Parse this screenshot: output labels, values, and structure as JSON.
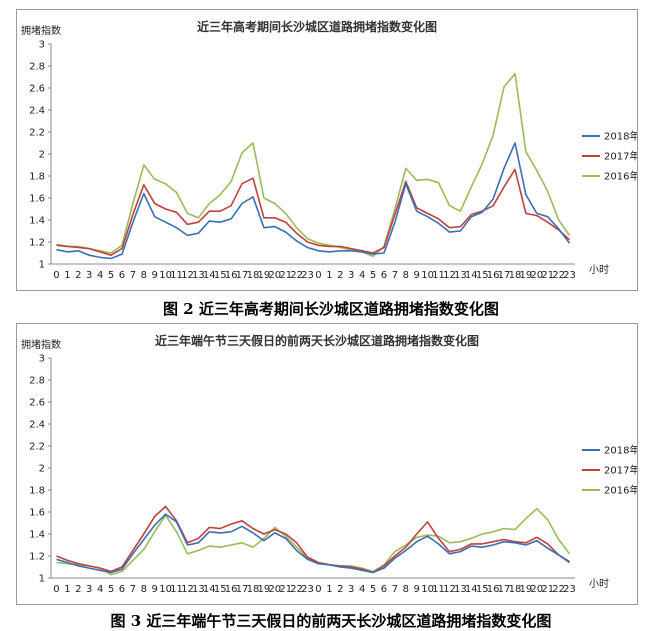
{
  "figures": [
    {
      "caption": "图 2  近三年高考期间长沙城区道路拥堵指数变化图",
      "chart_data": {
        "type": "line",
        "title": "近三年高考期间长沙城区道路拥堵指数变化图",
        "ylabel": "拥堵指数",
        "xlabel": "小时",
        "ylim": [
          1,
          3
        ],
        "yticks": [
          "1",
          "1.2",
          "1.4",
          "1.6",
          "1.8",
          "2",
          "2.2",
          "2.4",
          "2.6",
          "2.8",
          "3"
        ],
        "categories": [
          "0",
          "1",
          "2",
          "3",
          "4",
          "5",
          "6",
          "7",
          "8",
          "9",
          "10",
          "11",
          "12",
          "13",
          "14",
          "15",
          "16",
          "17",
          "18",
          "19",
          "20",
          "21",
          "22",
          "23",
          "0",
          "1",
          "2",
          "3",
          "4",
          "5",
          "6",
          "7",
          "8",
          "9",
          "10",
          "11",
          "12",
          "13",
          "14",
          "15",
          "16",
          "17",
          "18",
          "19",
          "20",
          "21",
          "22",
          "23"
        ],
        "legend_position": "right",
        "series": [
          {
            "name": "2018年",
            "color": "#3a6fb5",
            "values": [
              1.13,
              1.11,
              1.12,
              1.08,
              1.06,
              1.05,
              1.09,
              1.38,
              1.64,
              1.43,
              1.38,
              1.33,
              1.26,
              1.28,
              1.39,
              1.38,
              1.41,
              1.55,
              1.61,
              1.33,
              1.34,
              1.29,
              1.21,
              1.15,
              1.12,
              1.11,
              1.12,
              1.12,
              1.11,
              1.09,
              1.1,
              1.38,
              1.73,
              1.48,
              1.43,
              1.37,
              1.29,
              1.3,
              1.43,
              1.47,
              1.59,
              1.87,
              2.1,
              1.63,
              1.46,
              1.43,
              1.32,
              1.19
            ]
          },
          {
            "name": "2017年",
            "color": "#c0403c",
            "values": [
              1.17,
              1.16,
              1.15,
              1.14,
              1.11,
              1.08,
              1.14,
              1.45,
              1.72,
              1.55,
              1.5,
              1.47,
              1.36,
              1.38,
              1.48,
              1.48,
              1.53,
              1.73,
              1.78,
              1.42,
              1.42,
              1.38,
              1.28,
              1.2,
              1.17,
              1.16,
              1.16,
              1.14,
              1.12,
              1.1,
              1.15,
              1.45,
              1.75,
              1.51,
              1.46,
              1.41,
              1.33,
              1.34,
              1.45,
              1.48,
              1.53,
              1.7,
              1.86,
              1.46,
              1.44,
              1.38,
              1.31,
              1.22
            ]
          },
          {
            "name": "2016年",
            "color": "#9bbb59",
            "values": [
              1.18,
              1.16,
              1.16,
              1.14,
              1.12,
              1.1,
              1.17,
              1.55,
              1.9,
              1.77,
              1.73,
              1.65,
              1.46,
              1.42,
              1.55,
              1.63,
              1.75,
              2.01,
              2.1,
              1.6,
              1.55,
              1.46,
              1.33,
              1.23,
              1.19,
              1.17,
              1.15,
              1.13,
              1.11,
              1.07,
              1.16,
              1.5,
              1.87,
              1.76,
              1.77,
              1.74,
              1.53,
              1.48,
              1.7,
              1.91,
              2.17,
              2.61,
              2.73,
              2.02,
              1.85,
              1.66,
              1.4,
              1.26
            ]
          }
        ]
      }
    },
    {
      "caption": "图 3  近三年端午节三天假日的前两天长沙城区道路拥堵指数变化图",
      "chart_data": {
        "type": "line",
        "title": "近三年端午节三天假日的前两天长沙城区道路拥堵指数变化图",
        "ylabel": "拥堵指数",
        "xlabel": "小时",
        "ylim": [
          1,
          3
        ],
        "yticks": [
          "1",
          "1.2",
          "1.4",
          "1.6",
          "1.8",
          "2",
          "2.2",
          "2.4",
          "2.6",
          "2.8",
          "3"
        ],
        "categories": [
          "0",
          "1",
          "2",
          "3",
          "4",
          "5",
          "6",
          "7",
          "8",
          "9",
          "10",
          "11",
          "12",
          "13",
          "14",
          "15",
          "16",
          "17",
          "18",
          "19",
          "20",
          "21",
          "22",
          "23",
          "0",
          "1",
          "2",
          "3",
          "4",
          "5",
          "6",
          "7",
          "8",
          "9",
          "10",
          "11",
          "12",
          "13",
          "14",
          "15",
          "16",
          "17",
          "18",
          "19",
          "20",
          "21",
          "22",
          "23"
        ],
        "legend_position": "right",
        "series": [
          {
            "name": "2018年",
            "color": "#3a6fb5",
            "values": [
              1.17,
              1.14,
              1.11,
              1.09,
              1.07,
              1.05,
              1.08,
              1.22,
              1.35,
              1.48,
              1.58,
              1.51,
              1.3,
              1.32,
              1.42,
              1.41,
              1.42,
              1.47,
              1.41,
              1.34,
              1.41,
              1.36,
              1.25,
              1.17,
              1.13,
              1.12,
              1.1,
              1.09,
              1.07,
              1.05,
              1.09,
              1.18,
              1.25,
              1.33,
              1.38,
              1.31,
              1.22,
              1.24,
              1.29,
              1.28,
              1.3,
              1.33,
              1.32,
              1.3,
              1.34,
              1.27,
              1.21,
              1.15
            ]
          },
          {
            "name": "2017年",
            "color": "#c0403c",
            "values": [
              1.2,
              1.16,
              1.13,
              1.11,
              1.09,
              1.06,
              1.1,
              1.25,
              1.4,
              1.56,
              1.65,
              1.52,
              1.32,
              1.36,
              1.46,
              1.45,
              1.49,
              1.52,
              1.45,
              1.4,
              1.44,
              1.4,
              1.32,
              1.19,
              1.14,
              1.12,
              1.11,
              1.1,
              1.08,
              1.05,
              1.11,
              1.2,
              1.28,
              1.4,
              1.51,
              1.36,
              1.24,
              1.26,
              1.31,
              1.31,
              1.33,
              1.35,
              1.33,
              1.32,
              1.37,
              1.31,
              1.21,
              1.14
            ]
          },
          {
            "name": "2016年",
            "color": "#9bbb59",
            "values": [
              1.14,
              1.13,
              1.12,
              1.11,
              1.09,
              1.03,
              1.06,
              1.16,
              1.26,
              1.42,
              1.57,
              1.42,
              1.22,
              1.25,
              1.29,
              1.28,
              1.3,
              1.32,
              1.28,
              1.36,
              1.46,
              1.38,
              1.28,
              1.18,
              1.14,
              1.12,
              1.11,
              1.11,
              1.09,
              1.06,
              1.12,
              1.24,
              1.3,
              1.37,
              1.39,
              1.38,
              1.32,
              1.33,
              1.36,
              1.4,
              1.42,
              1.45,
              1.44,
              1.54,
              1.63,
              1.53,
              1.35,
              1.22
            ]
          }
        ]
      }
    }
  ]
}
